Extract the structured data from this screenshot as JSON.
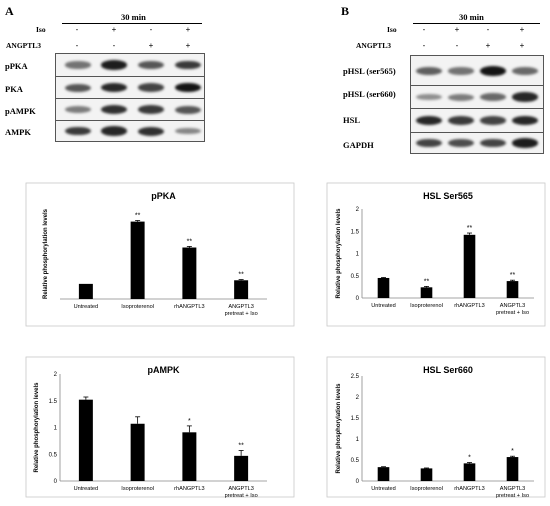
{
  "panels": [
    {
      "letter": "A",
      "time_label": "30 min",
      "treatments": [
        {
          "name": "Iso",
          "signs": [
            "-",
            "+",
            "-",
            "+"
          ]
        },
        {
          "name": "ANGPTL3",
          "signs": [
            "-",
            "-",
            "+",
            "+"
          ]
        }
      ],
      "blots": [
        {
          "label": "pPKA",
          "intensity": [
            0.45,
            0.9,
            0.6,
            0.75
          ]
        },
        {
          "label": "PKA",
          "intensity": [
            0.6,
            0.85,
            0.7,
            0.95
          ]
        },
        {
          "label": "pAMPK",
          "intensity": [
            0.4,
            0.8,
            0.75,
            0.6
          ]
        },
        {
          "label": "AMPK",
          "intensity": [
            0.75,
            0.85,
            0.8,
            0.35
          ]
        }
      ]
    },
    {
      "letter": "B",
      "time_label": "30 min",
      "treatments": [
        {
          "name": "Iso",
          "signs": [
            "-",
            "+",
            "-",
            "+"
          ]
        },
        {
          "name": "ANGPTL3",
          "signs": [
            "-",
            "-",
            "+",
            "+"
          ]
        }
      ],
      "blots": [
        {
          "label": "pHSL (ser565)",
          "intensity": [
            0.55,
            0.45,
            0.95,
            0.5
          ]
        },
        {
          "label": "pHSL (ser660)",
          "intensity": [
            0.3,
            0.4,
            0.5,
            0.85
          ]
        },
        {
          "label": "HSL",
          "intensity": [
            0.85,
            0.75,
            0.7,
            0.85
          ]
        },
        {
          "label": "GAPDH",
          "intensity": [
            0.7,
            0.65,
            0.7,
            0.9
          ]
        }
      ]
    }
  ],
  "chart_data": [
    {
      "type": "bar",
      "title": "pPKA",
      "ylabel": "Relative phosphorylation levels",
      "categories": [
        "Untreated",
        "Isoproterenol",
        "rhANGPTL3",
        "ANGPTL3 pretreat + Iso"
      ],
      "values": [
        0.42,
        2.15,
        1.43,
        0.52
      ],
      "errors": [
        0,
        0.03,
        0.03,
        0.02
      ],
      "significance": [
        "",
        "**",
        "**",
        "**"
      ],
      "ylim": [
        0,
        2.5
      ],
      "yticks": []
    },
    {
      "type": "bar",
      "title": "HSL Ser565",
      "ylabel": "Relative phosphorylation levels",
      "categories": [
        "Untreated",
        "Isoproterenol",
        "rhANGPTL3",
        "ANGPTL3 pretreat + Iso"
      ],
      "values": [
        0.45,
        0.24,
        1.42,
        0.38
      ],
      "errors": [
        0.01,
        0.02,
        0.04,
        0.02
      ],
      "significance": [
        "",
        "**",
        "**",
        "**"
      ],
      "ylim": [
        0,
        2
      ],
      "yticks": [
        "0",
        "0.5",
        "1",
        "1.5",
        "2"
      ]
    },
    {
      "type": "bar",
      "title": "pAMPK",
      "ylabel": "Relative phosphorylation levels",
      "categories": [
        "Untreated",
        "Isoproterenol",
        "rhANGPTL3",
        "ANGPTL3 pretreat + Iso"
      ],
      "values": [
        1.52,
        1.07,
        0.91,
        0.47
      ],
      "errors": [
        0.05,
        0.13,
        0.12,
        0.1
      ],
      "significance": [
        "",
        "",
        "*",
        "**"
      ],
      "ylim": [
        0,
        2
      ],
      "yticks": [
        "0",
        "0.5",
        "1",
        "1.5",
        "2"
      ]
    },
    {
      "type": "bar",
      "title": "HSL Ser660",
      "ylabel": "Relative phosphorylation levels",
      "categories": [
        "Untreated",
        "Isoproterenol",
        "rhANGPTL3",
        "ANGPTL3 pretreat + Iso"
      ],
      "values": [
        0.33,
        0.3,
        0.42,
        0.57
      ],
      "errors": [
        0.01,
        0.01,
        0.02,
        0.02
      ],
      "significance": [
        "",
        "",
        "*",
        "*"
      ],
      "ylim": [
        0,
        2.5
      ],
      "yticks": [
        "0",
        "0.5",
        "1",
        "1.5",
        "2",
        "2.5"
      ]
    }
  ]
}
